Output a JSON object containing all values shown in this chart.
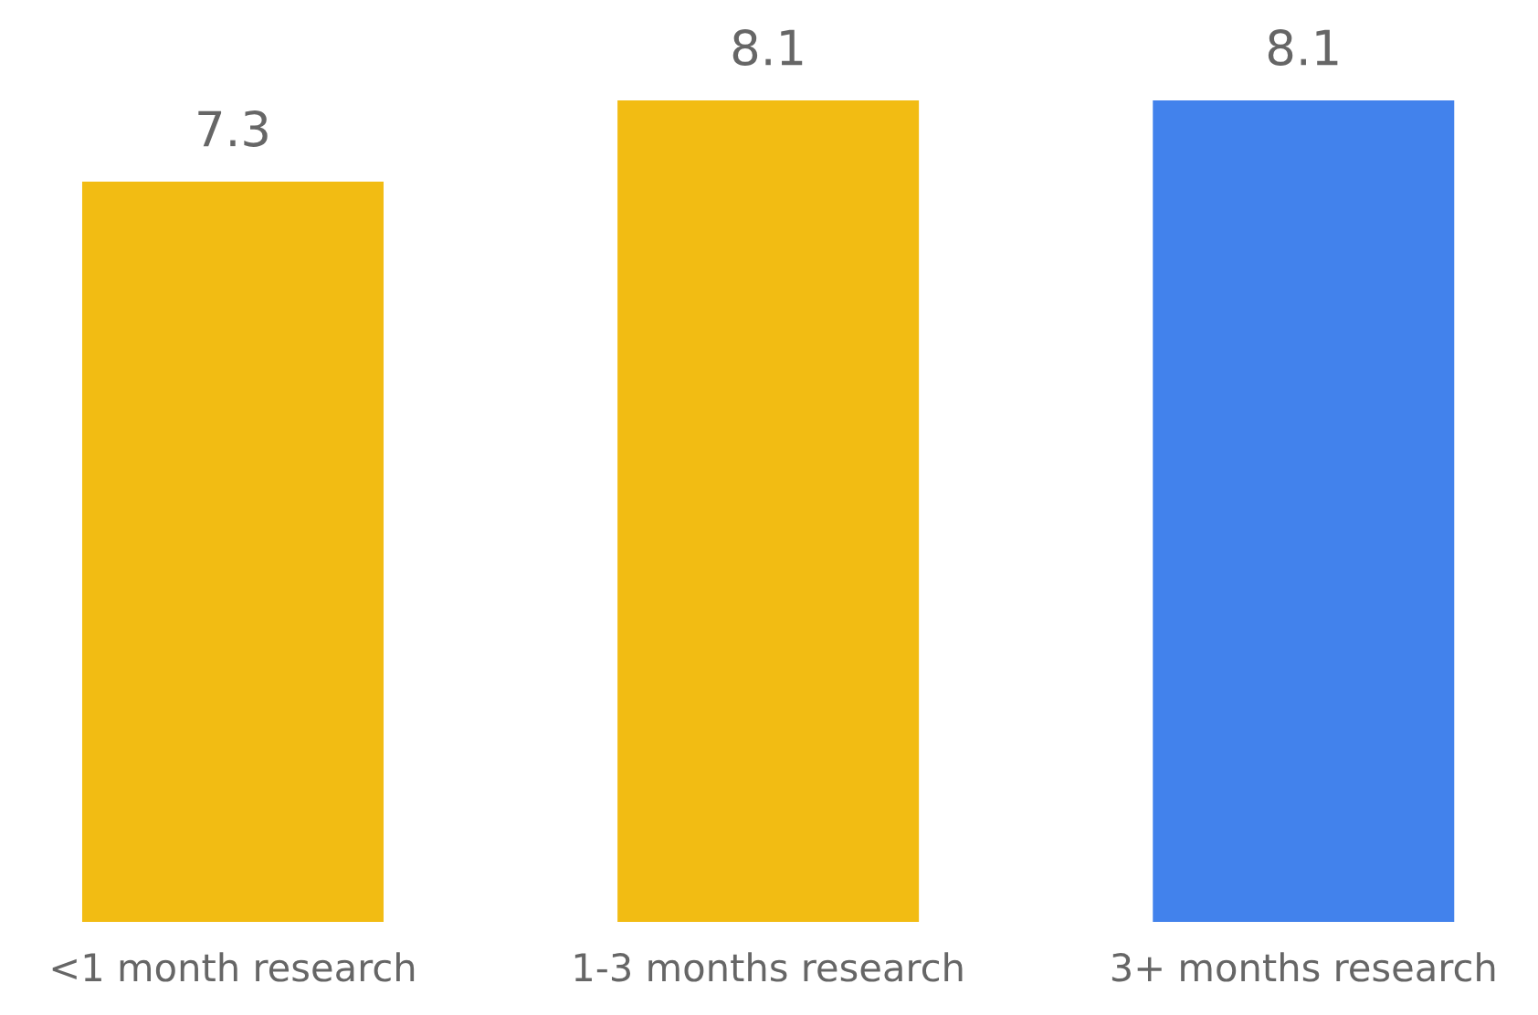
{
  "chart_data": {
    "type": "bar",
    "categories": [
      "<1 month research",
      "1-3 months research",
      "3+ months research"
    ],
    "values": [
      7.3,
      8.1,
      8.1
    ],
    "colors": [
      "#f2bc13",
      "#f2bc13",
      "#4282ec"
    ],
    "data_labels": true,
    "tick_labels": "x",
    "grid": false,
    "legend": false
  }
}
